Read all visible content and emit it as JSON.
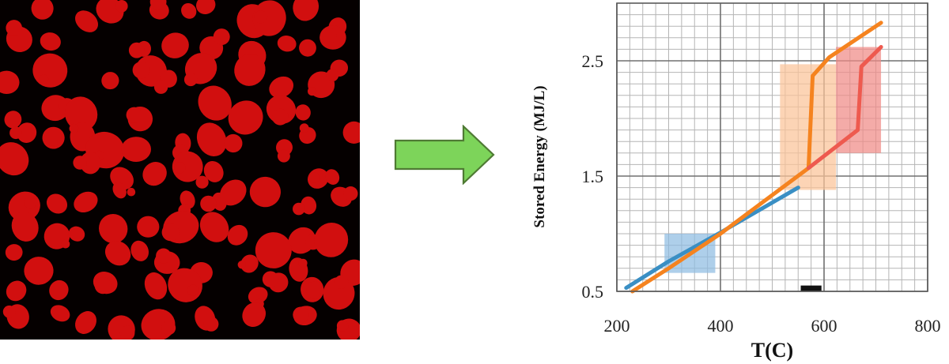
{
  "chart_data": {
    "type": "line",
    "xlabel": "T(C)",
    "ylabel": "Stored Energy (MJ/L)",
    "xlim": [
      200,
      800
    ],
    "ylim": [
      0.5,
      3.0
    ],
    "x_ticks": [
      "200",
      "400",
      "600",
      "800"
    ],
    "y_ticks": [
      "0.5",
      "1.5",
      "2.5"
    ],
    "x_tick_values": [
      200,
      400,
      600,
      800
    ],
    "y_tick_values": [
      0.5,
      1.5,
      2.5
    ],
    "grid": true,
    "minor_grid": true,
    "series": [
      {
        "color": "#3a8fc4",
        "points": [
          [
            218,
            0.53
          ],
          [
            300,
            0.76
          ],
          [
            400,
            1.01
          ],
          [
            550,
            1.4
          ]
        ]
      },
      {
        "color": "#f5831f",
        "points": [
          [
            230,
            0.5
          ],
          [
            300,
            0.7
          ],
          [
            400,
            1.0
          ],
          [
            570,
            1.57
          ],
          [
            578,
            2.37
          ],
          [
            610,
            2.53
          ],
          [
            710,
            2.83
          ]
        ]
      },
      {
        "color": "#ee5a4f",
        "points": [
          [
            570,
            1.57
          ],
          [
            665,
            1.9
          ],
          [
            672,
            2.45
          ],
          [
            710,
            2.62
          ]
        ]
      }
    ],
    "regions": [
      {
        "color": "#8fbde2",
        "x": [
          292,
          390
        ],
        "y": [
          0.66,
          1.0
        ]
      },
      {
        "color": "#fbc499",
        "x": [
          515,
          623
        ],
        "y": [
          1.38,
          2.47
        ]
      },
      {
        "color": "#f08a86",
        "x": [
          623,
          710
        ],
        "y": [
          1.7,
          2.62
        ]
      }
    ],
    "marker": {
      "color": "#111111",
      "x": [
        555,
        595
      ],
      "y": 0.53
    }
  },
  "left_image": {
    "description_icon": "red-particle-micrograph",
    "background": "#050000",
    "particle_color": "#d10f0f"
  },
  "arrow": {
    "icon": "right-arrow-icon",
    "color": "#7dd45a",
    "stroke": "#4f7a34"
  }
}
